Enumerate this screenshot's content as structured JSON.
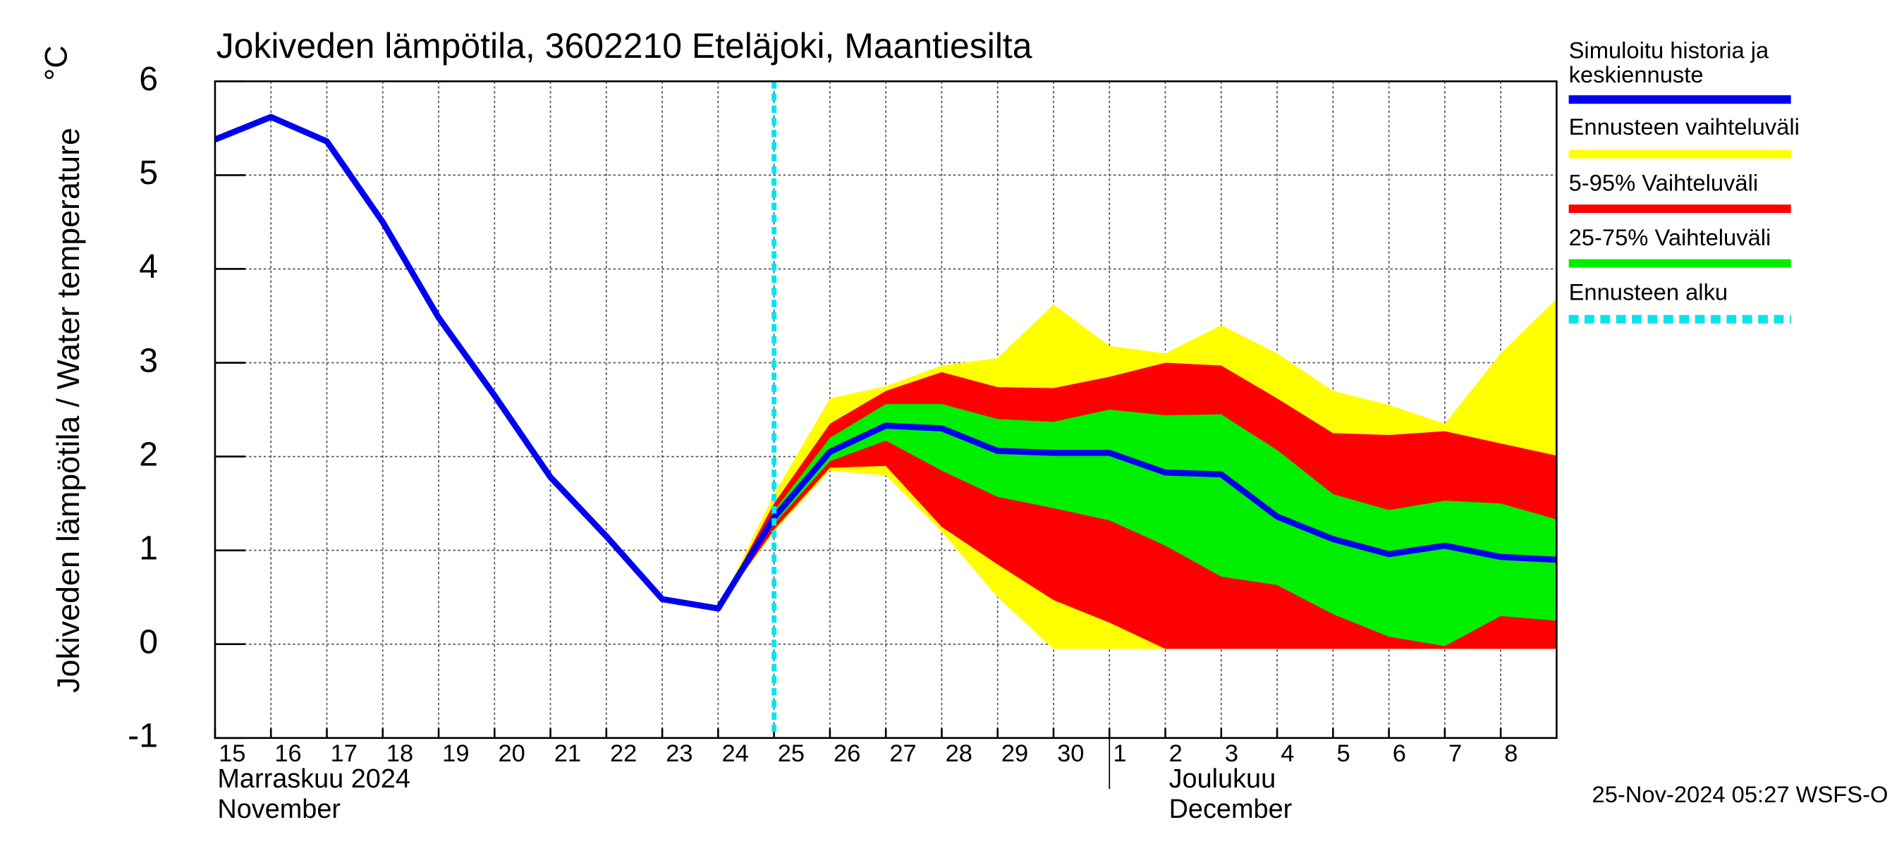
{
  "chart_data": {
    "type": "line",
    "title": "Jokiveden lämpötila, 3602210 Eteläjoki, Maantiesilta",
    "ylabel": "Jokiveden lämpötila / Water temperature",
    "yunit": "°C",
    "footer": "25-Nov-2024 05:27 WSFS-O",
    "months": [
      {
        "label": "Marraskuu 2024",
        "label_en": "November"
      },
      {
        "label": "Joulukuu",
        "label_en": "December"
      }
    ],
    "xlim": [
      "2024-11-15",
      "2024-12-09"
    ],
    "xticks": [
      {
        "value": "2024-11-15",
        "label": "15"
      },
      {
        "value": "2024-11-16",
        "label": "16"
      },
      {
        "value": "2024-11-17",
        "label": "17"
      },
      {
        "value": "2024-11-18",
        "label": "18"
      },
      {
        "value": "2024-11-19",
        "label": "19"
      },
      {
        "value": "2024-11-20",
        "label": "20"
      },
      {
        "value": "2024-11-21",
        "label": "21"
      },
      {
        "value": "2024-11-22",
        "label": "22"
      },
      {
        "value": "2024-11-23",
        "label": "23"
      },
      {
        "value": "2024-11-24",
        "label": "24"
      },
      {
        "value": "2024-11-25",
        "label": "25"
      },
      {
        "value": "2024-11-26",
        "label": "26"
      },
      {
        "value": "2024-11-27",
        "label": "27"
      },
      {
        "value": "2024-11-28",
        "label": "28"
      },
      {
        "value": "2024-11-29",
        "label": "29"
      },
      {
        "value": "2024-11-30",
        "label": "30"
      },
      {
        "value": "2024-12-01",
        "label": "1"
      },
      {
        "value": "2024-12-02",
        "label": "2"
      },
      {
        "value": "2024-12-03",
        "label": "3"
      },
      {
        "value": "2024-12-04",
        "label": "4"
      },
      {
        "value": "2024-12-05",
        "label": "5"
      },
      {
        "value": "2024-12-06",
        "label": "6"
      },
      {
        "value": "2024-12-07",
        "label": "7"
      },
      {
        "value": "2024-12-08",
        "label": "8"
      }
    ],
    "ylim": [
      -1,
      6
    ],
    "yticks": [
      -1,
      0,
      1,
      2,
      3,
      4,
      5,
      6
    ],
    "grid": true,
    "x": [
      "2024-11-15",
      "2024-11-16",
      "2024-11-17",
      "2024-11-18",
      "2024-11-19",
      "2024-11-20",
      "2024-11-21",
      "2024-11-22",
      "2024-11-23",
      "2024-11-24",
      "2024-11-25",
      "2024-11-26",
      "2024-11-27",
      "2024-11-28",
      "2024-11-29",
      "2024-11-30",
      "2024-12-01",
      "2024-12-02",
      "2024-12-03",
      "2024-12-04",
      "2024-12-05",
      "2024-12-06",
      "2024-12-07",
      "2024-12-08",
      "2024-12-09"
    ],
    "series": [
      {
        "name": "Simuloitu historia ja keskiennuste",
        "color": "#0000ee",
        "values": [
          5.38,
          5.62,
          5.36,
          4.5,
          3.48,
          2.65,
          1.78,
          1.15,
          0.48,
          0.38,
          1.35,
          2.05,
          2.33,
          2.3,
          2.06,
          2.04,
          2.04,
          1.83,
          1.81,
          1.36,
          1.12,
          0.96,
          1.05,
          0.93,
          0.9
        ]
      }
    ],
    "bands": [
      {
        "name": "Ennusteen vaihteluväli",
        "color": "#ffff00",
        "x": [
          "2024-11-24",
          "2024-11-25",
          "2024-11-26",
          "2024-11-27",
          "2024-11-28",
          "2024-11-29",
          "2024-11-30",
          "2024-12-01",
          "2024-12-02",
          "2024-12-03",
          "2024-12-04",
          "2024-12-05",
          "2024-12-06",
          "2024-12-07",
          "2024-12-08",
          "2024-12-09"
        ],
        "upper": [
          0.38,
          1.6,
          2.62,
          2.75,
          2.97,
          3.05,
          3.62,
          3.18,
          3.1,
          3.4,
          3.1,
          2.7,
          2.55,
          2.35,
          3.1,
          3.68
        ],
        "lower": [
          0.38,
          1.2,
          1.85,
          1.8,
          1.2,
          0.5,
          -0.05,
          -0.05,
          -0.05,
          -0.05,
          -0.05,
          -0.05,
          -0.05,
          -0.05,
          -0.05,
          -0.05
        ]
      },
      {
        "name": "5-95% Vaihteluväli",
        "color": "#ff0000",
        "x": [
          "2024-11-24",
          "2024-11-25",
          "2024-11-26",
          "2024-11-27",
          "2024-11-28",
          "2024-11-29",
          "2024-11-30",
          "2024-12-01",
          "2024-12-02",
          "2024-12-03",
          "2024-12-04",
          "2024-12-05",
          "2024-12-06",
          "2024-12-07",
          "2024-12-08",
          "2024-12-09"
        ],
        "upper": [
          0.38,
          1.5,
          2.35,
          2.7,
          2.9,
          2.74,
          2.73,
          2.85,
          3.0,
          2.97,
          2.62,
          2.25,
          2.23,
          2.27,
          2.14,
          2.01
        ],
        "lower": [
          0.38,
          1.22,
          1.88,
          1.9,
          1.25,
          0.85,
          0.47,
          0.23,
          -0.05,
          -0.05,
          -0.05,
          -0.05,
          -0.05,
          -0.05,
          -0.05,
          -0.05
        ]
      },
      {
        "name": "25-75% Vaihteluväli",
        "color": "#00ee00",
        "x": [
          "2024-11-24",
          "2024-11-25",
          "2024-11-26",
          "2024-11-27",
          "2024-11-28",
          "2024-11-29",
          "2024-11-30",
          "2024-12-01",
          "2024-12-02",
          "2024-12-03",
          "2024-12-04",
          "2024-12-05",
          "2024-12-06",
          "2024-12-07",
          "2024-12-08",
          "2024-12-09"
        ],
        "upper": [
          0.38,
          1.42,
          2.2,
          2.56,
          2.56,
          2.4,
          2.37,
          2.5,
          2.44,
          2.45,
          2.07,
          1.6,
          1.43,
          1.53,
          1.5,
          1.33
        ],
        "lower": [
          0.38,
          1.28,
          1.95,
          2.17,
          1.85,
          1.57,
          1.45,
          1.32,
          1.05,
          0.72,
          0.63,
          0.32,
          0.08,
          -0.02,
          0.3,
          0.25
        ]
      }
    ],
    "forecast_start": {
      "name": "Ennusteen alku",
      "color": "#00e5ee",
      "x": "2024-11-25"
    }
  }
}
